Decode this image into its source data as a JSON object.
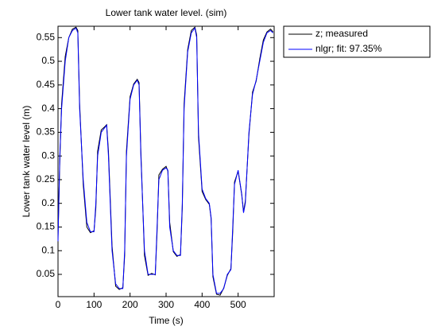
{
  "chart_data": {
    "type": "line",
    "title": "Lower tank water level. (sim)",
    "xlabel": "Time (s)",
    "ylabel": "Lower tank water level (m)",
    "x": [
      0,
      5,
      10,
      20,
      30,
      40,
      50,
      55,
      60,
      70,
      80,
      90,
      100,
      105,
      110,
      120,
      130,
      135,
      140,
      150,
      160,
      170,
      180,
      185,
      190,
      200,
      210,
      220,
      225,
      230,
      240,
      250,
      260,
      270,
      275,
      280,
      290,
      300,
      305,
      310,
      320,
      330,
      340,
      345,
      350,
      360,
      370,
      380,
      385,
      390,
      400,
      410,
      420,
      425,
      430,
      440,
      450,
      460,
      470,
      480,
      485,
      490,
      500,
      510,
      515,
      520,
      530,
      540,
      550,
      560,
      570,
      580,
      590,
      597
    ],
    "series": [
      {
        "name": "z; measured",
        "color": "#000000",
        "values": [
          0.13,
          0.29,
          0.41,
          0.51,
          0.55,
          0.568,
          0.572,
          0.565,
          0.41,
          0.24,
          0.15,
          0.138,
          0.142,
          0.19,
          0.31,
          0.355,
          0.362,
          0.366,
          0.31,
          0.11,
          0.025,
          0.018,
          0.022,
          0.09,
          0.31,
          0.425,
          0.452,
          0.462,
          0.455,
          0.31,
          0.09,
          0.048,
          0.052,
          0.049,
          0.14,
          0.26,
          0.272,
          0.278,
          0.268,
          0.16,
          0.098,
          0.088,
          0.092,
          0.19,
          0.41,
          0.525,
          0.565,
          0.572,
          0.555,
          0.34,
          0.225,
          0.208,
          0.198,
          0.168,
          0.045,
          0.008,
          0.006,
          0.021,
          0.048,
          0.062,
          0.14,
          0.245,
          0.268,
          0.218,
          0.182,
          0.205,
          0.345,
          0.435,
          0.458,
          0.505,
          0.545,
          0.562,
          0.568,
          0.562
        ]
      },
      {
        "name": "nlgr; fit: 97.35%",
        "color": "#0000ff",
        "values": [
          0.12,
          0.3,
          0.4,
          0.5,
          0.55,
          0.565,
          0.57,
          0.56,
          0.4,
          0.25,
          0.16,
          0.14,
          0.14,
          0.2,
          0.3,
          0.35,
          0.36,
          0.365,
          0.3,
          0.1,
          0.03,
          0.02,
          0.02,
          0.1,
          0.3,
          0.42,
          0.45,
          0.46,
          0.45,
          0.3,
          0.1,
          0.05,
          0.05,
          0.05,
          0.15,
          0.25,
          0.27,
          0.275,
          0.27,
          0.15,
          0.1,
          0.09,
          0.09,
          0.2,
          0.4,
          0.52,
          0.56,
          0.57,
          0.55,
          0.35,
          0.23,
          0.21,
          0.2,
          0.17,
          0.05,
          0.01,
          0.01,
          0.02,
          0.05,
          0.06,
          0.15,
          0.24,
          0.27,
          0.22,
          0.18,
          0.2,
          0.35,
          0.43,
          0.46,
          0.5,
          0.54,
          0.56,
          0.565,
          0.56
        ]
      }
    ],
    "xlim": [
      0,
      600
    ],
    "xticks": [
      0,
      100,
      200,
      300,
      400,
      500
    ],
    "ylim": [
      0.003,
      0.574
    ],
    "yticks": [
      0.05,
      0.1,
      0.15,
      0.2,
      0.25,
      0.3,
      0.35,
      0.4,
      0.45,
      0.5,
      0.55
    ],
    "grid": false,
    "legend": "northeastoutside"
  }
}
